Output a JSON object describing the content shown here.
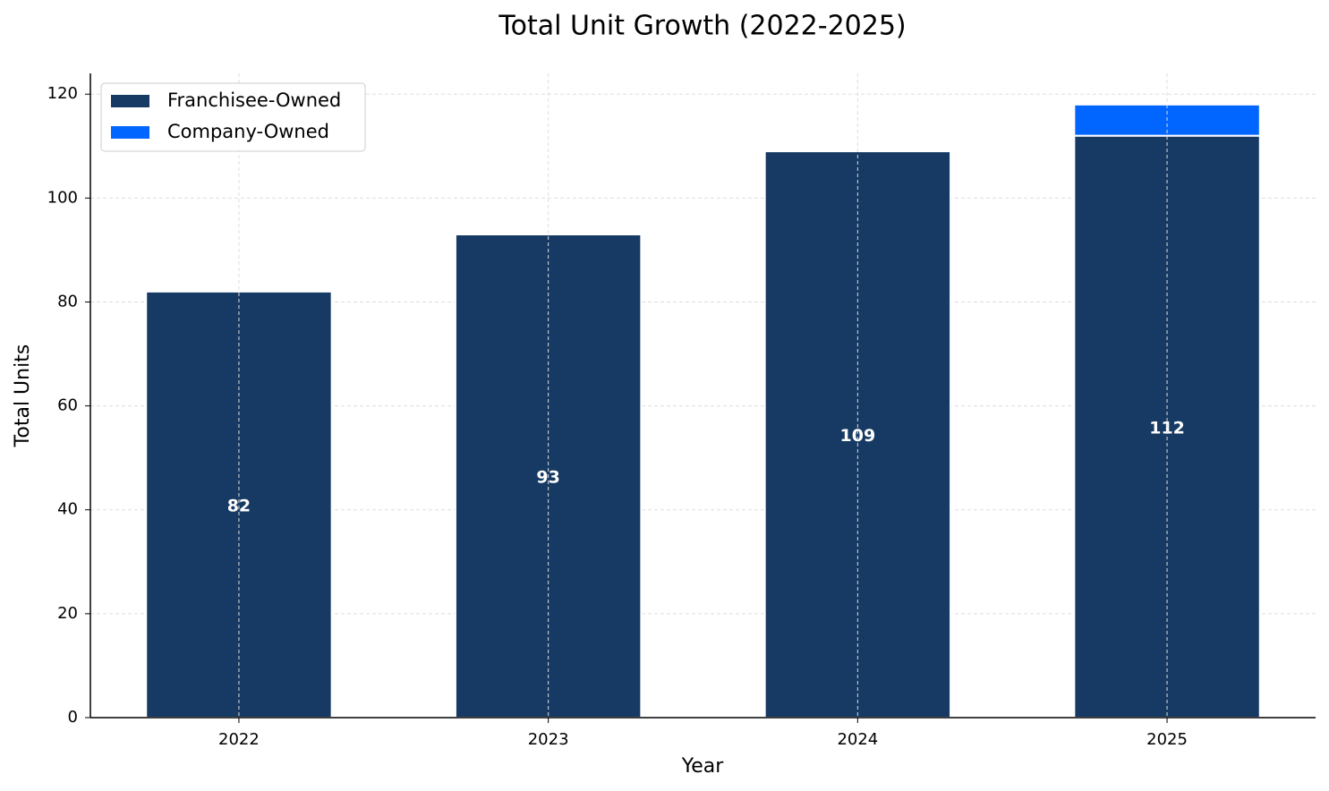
{
  "chart_data": {
    "type": "bar",
    "stacked": true,
    "title": "Total Unit Growth (2022-2025)",
    "xlabel": "Year",
    "ylabel": "Total Units",
    "categories": [
      "2022",
      "2023",
      "2024",
      "2025"
    ],
    "series": [
      {
        "name": "Franchisee-Owned",
        "color": "#163a63",
        "values": [
          82,
          93,
          109,
          112
        ]
      },
      {
        "name": "Company-Owned",
        "color": "#0066ff",
        "values": [
          0,
          0,
          0,
          6
        ]
      }
    ],
    "ylim": [
      0,
      124
    ],
    "yticks": [
      0,
      20,
      40,
      60,
      80,
      100,
      120
    ],
    "grid": true,
    "legend": "upper left"
  }
}
